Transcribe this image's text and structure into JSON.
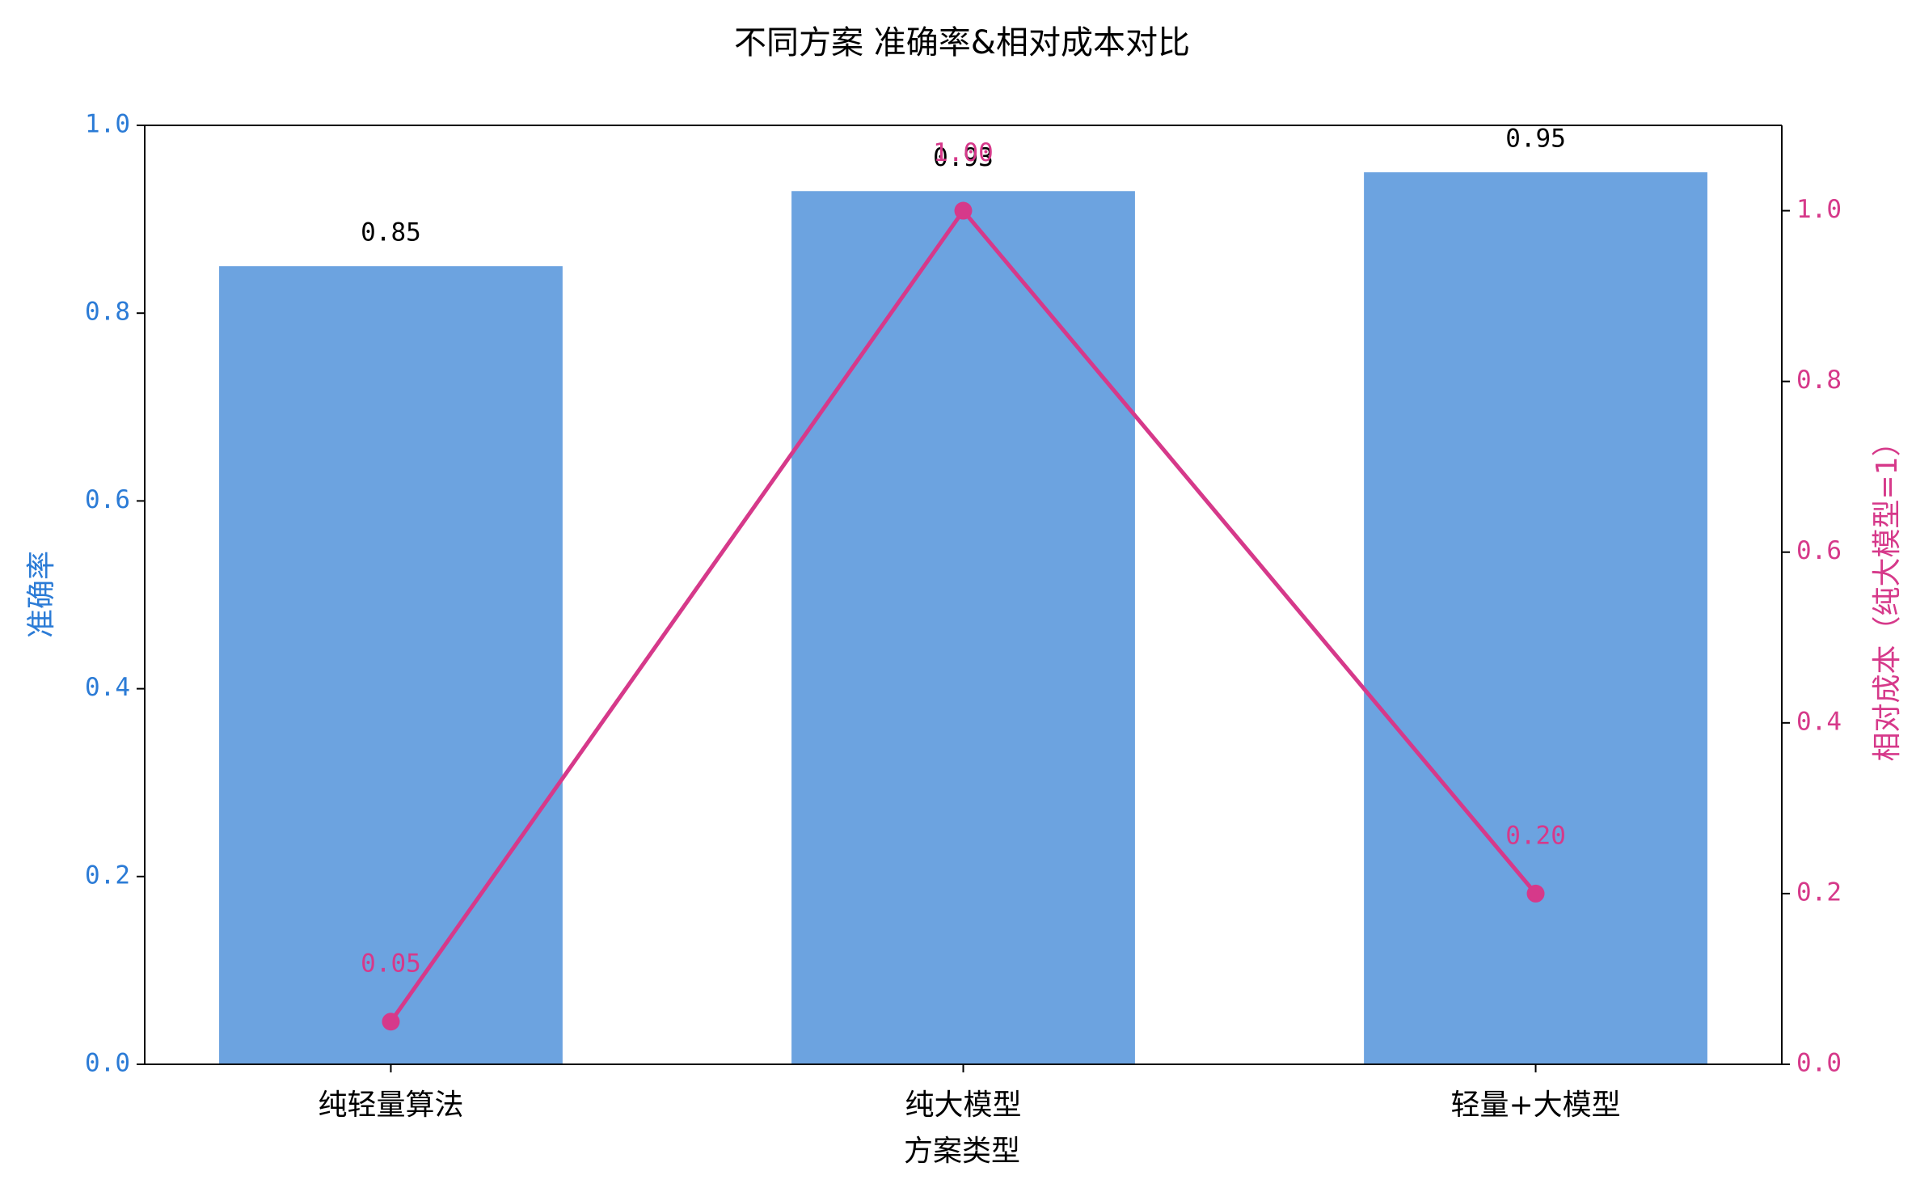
{
  "chart_data": {
    "type": "bar_line",
    "title": "不同方案 准确率&相对成本对比",
    "x_label": "方案类型",
    "y_label": "准确率",
    "y2_label": "相对成本（纯大模型=1）",
    "categories": [
      "纯轻量算法",
      "纯大模型",
      "轻量+大模型"
    ],
    "series": [
      {
        "type": "bar",
        "color": "#6ca3e0",
        "values": [
          0.85,
          0.93,
          0.95
        ]
      },
      {
        "type": "line",
        "axis": "y2",
        "color": "#d6398a",
        "values": [
          0.05,
          1.0,
          0.2
        ],
        "value_labels": [
          "0.05",
          "1.00",
          "0.20"
        ]
      }
    ],
    "ylim": [
      0,
      1
    ],
    "yticks": [
      {
        "value": 0,
        "label": "0.0"
      },
      {
        "value": 0.2,
        "label": "0.2"
      },
      {
        "value": 0.4,
        "label": "0.4"
      },
      {
        "value": 0.6,
        "label": "0.6"
      },
      {
        "value": 0.8,
        "label": "0.8"
      },
      {
        "value": 1,
        "label": "1.0"
      }
    ],
    "y2lim": [
      0,
      1.1
    ],
    "y2ticks": [
      {
        "value": 0,
        "label": "0.0"
      },
      {
        "value": 0.2,
        "label": "0.2"
      },
      {
        "value": 0.4,
        "label": "0.4"
      },
      {
        "value": 0.6,
        "label": "0.6"
      },
      {
        "value": 0.8,
        "label": "0.8"
      },
      {
        "value": 1,
        "label": "1.0"
      }
    ],
    "y_color": "#2b7bd6",
    "y2_color": "#d6398a"
  }
}
